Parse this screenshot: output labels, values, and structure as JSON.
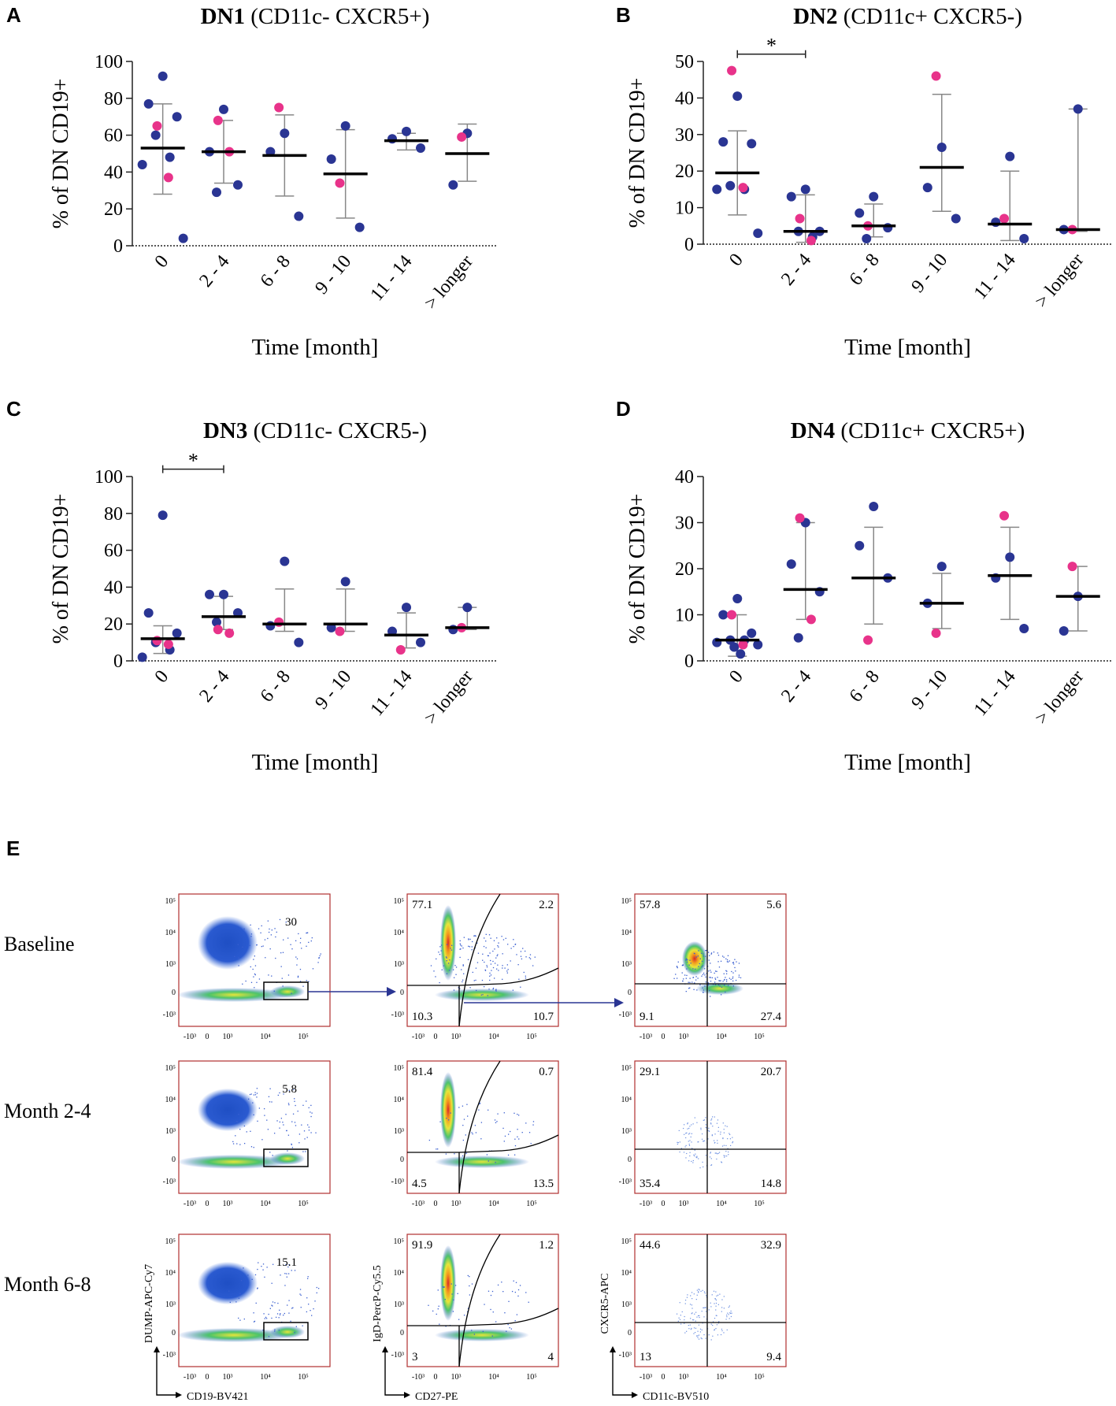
{
  "colors": {
    "blue": "#2a3593",
    "pink": "#e8338a",
    "err": "#888888",
    "mean": "#000000",
    "arrow": "#2a3593",
    "frame": "#b03030"
  },
  "chart_data": [
    {
      "type": "scatter",
      "panel": "A",
      "title_bold": "DN1",
      "title_rest": " (CD11c- CXCR5+)",
      "ylabel": "% of DN CD19+",
      "xlabel": "Time [month]",
      "categories": [
        "0",
        "2 - 4",
        "6 - 8",
        "9 - 10",
        "11 - 14",
        "> longer"
      ],
      "ylim": [
        0,
        100
      ],
      "yticks": [
        "0",
        "20",
        "40",
        "60",
        "80",
        "100"
      ],
      "mean": [
        53,
        51,
        49,
        39,
        57,
        50
      ],
      "sd_low": [
        28,
        34,
        27,
        15,
        52,
        35
      ],
      "sd_high": [
        77,
        68,
        71,
        63,
        61,
        66
      ],
      "points_blue": [
        [
          92,
          77,
          70,
          60,
          48,
          44,
          4
        ],
        [
          74,
          51,
          33,
          29
        ],
        [
          61,
          51,
          16
        ],
        [
          65,
          47,
          10
        ],
        [
          62,
          58,
          53
        ],
        [
          61,
          33
        ]
      ],
      "points_pink": [
        [
          65,
          37
        ],
        [
          68,
          51
        ],
        [
          75
        ],
        [
          34
        ],
        [],
        [
          59
        ]
      ],
      "significance": null
    },
    {
      "type": "scatter",
      "panel": "B",
      "title_bold": "DN2",
      "title_rest": " (CD11c+ CXCR5-)",
      "ylabel": "% of DN CD19+",
      "xlabel": "Time [month]",
      "categories": [
        "0",
        "2 - 4",
        "6 - 8",
        "9 - 10",
        "11 - 14",
        "> longer"
      ],
      "ylim": [
        0,
        50
      ],
      "yticks": [
        "0",
        "10",
        "20",
        "30",
        "40",
        "50"
      ],
      "mean": [
        19.5,
        3.5,
        5,
        21,
        5.5,
        4
      ],
      "sd_low": [
        8,
        0.5,
        2,
        9,
        1,
        3.5
      ],
      "sd_high": [
        31,
        13.5,
        11,
        41,
        20,
        37
      ],
      "points_blue": [
        [
          40.5,
          28,
          27.5,
          16,
          15,
          15,
          3
        ],
        [
          15,
          13,
          3.5,
          3.5,
          2
        ],
        [
          13,
          8.5,
          4.5,
          1.5
        ],
        [
          26.5,
          15.5,
          7
        ],
        [
          24,
          6,
          1.5
        ],
        [
          37,
          4
        ]
      ],
      "points_pink": [
        [
          47.5,
          15.5
        ],
        [
          7,
          1
        ],
        [
          5
        ],
        [
          46
        ],
        [
          7
        ],
        [
          4
        ]
      ],
      "significance": {
        "from": 0,
        "to": 1,
        "y": 52,
        "label": "*"
      }
    },
    {
      "type": "scatter",
      "panel": "C",
      "title_bold": "DN3",
      "title_rest": " (CD11c- CXCR5-)",
      "ylabel": "% of DN CD19+",
      "xlabel": "Time [month]",
      "categories": [
        "0",
        "2 - 4",
        "6 - 8",
        "9 - 10",
        "11 - 14",
        "> longer"
      ],
      "ylim": [
        0,
        100
      ],
      "yticks": [
        "0",
        "20",
        "40",
        "60",
        "80",
        "100"
      ],
      "mean": [
        12,
        24,
        20,
        20,
        14,
        18
      ],
      "sd_low": [
        4,
        17,
        16,
        16,
        7,
        17
      ],
      "sd_high": [
        19,
        35,
        39,
        39,
        26,
        29
      ],
      "points_blue": [
        [
          79,
          26,
          15,
          10,
          6,
          2
        ],
        [
          36,
          36,
          26,
          21
        ],
        [
          54,
          19,
          10
        ],
        [
          43,
          18
        ],
        [
          29,
          16,
          10
        ],
        [
          29,
          17
        ]
      ],
      "points_pink": [
        [
          11,
          9
        ],
        [
          17,
          15
        ],
        [
          21
        ],
        [
          16
        ],
        [
          6
        ],
        [
          18
        ]
      ],
      "significance": {
        "from": 0,
        "to": 1,
        "y": 104,
        "label": "*"
      }
    },
    {
      "type": "scatter",
      "panel": "D",
      "title_bold": "DN4",
      "title_rest": " (CD11c+ CXCR5+)",
      "ylabel": "% of DN CD19+",
      "xlabel": "Time [month]",
      "categories": [
        "0",
        "2 - 4",
        "6 - 8",
        "9 - 10",
        "11 - 14",
        "> longer"
      ],
      "ylim": [
        0,
        40
      ],
      "yticks": [
        "0",
        "10",
        "20",
        "30",
        "40"
      ],
      "mean": [
        4.5,
        15.5,
        18,
        12.5,
        18.5,
        14
      ],
      "sd_low": [
        1,
        9,
        8,
        7,
        9,
        6.5
      ],
      "sd_high": [
        10,
        30,
        29,
        19,
        29,
        20.5
      ],
      "points_blue": [
        [
          13.5,
          10,
          6,
          4.5,
          4.5,
          4,
          3.5,
          3,
          1.5
        ],
        [
          30,
          21,
          15,
          5
        ],
        [
          33.5,
          25,
          18
        ],
        [
          20.5,
          12.5
        ],
        [
          22.5,
          18,
          7
        ],
        [
          14,
          6.5
        ]
      ],
      "points_pink": [
        [
          10,
          3.5
        ],
        [
          31,
          9
        ],
        [
          4.5
        ],
        [
          6
        ],
        [
          31.5
        ],
        [
          20.5
        ]
      ],
      "significance": null
    }
  ],
  "flow": {
    "panel": "E",
    "rows": [
      "Baseline",
      "Month 2-4",
      "Month 6-8"
    ],
    "ticks_y": [
      "10⁵",
      "10⁴",
      "10³",
      "0",
      "-10³"
    ],
    "ticks_x": [
      "-10³",
      "0",
      "10³",
      "10⁴",
      "10⁵"
    ],
    "col1_values": [
      "30",
      "5.8",
      "15.1"
    ],
    "col2_values": [
      [
        "77.1",
        "2.2",
        "10.3",
        "10.7"
      ],
      [
        "81.4",
        "0.7",
        "4.5",
        "13.5"
      ],
      [
        "91.9",
        "1.2",
        "3",
        "4"
      ]
    ],
    "col3_values": [
      [
        "57.8",
        "5.6",
        "9.1",
        "27.4"
      ],
      [
        "29.1",
        "20.7",
        "35.4",
        "14.8"
      ],
      [
        "44.6",
        "32.9",
        "13",
        "9.4"
      ]
    ],
    "axes": [
      {
        "x": "CD19-BV421",
        "y": "DUMP-APC-Cy7"
      },
      {
        "x": "CD27-PE",
        "y": "IgD-PercP-Cy5.5"
      },
      {
        "x": "CD11c-BV510",
        "y": "CXCR5-APC"
      }
    ]
  }
}
